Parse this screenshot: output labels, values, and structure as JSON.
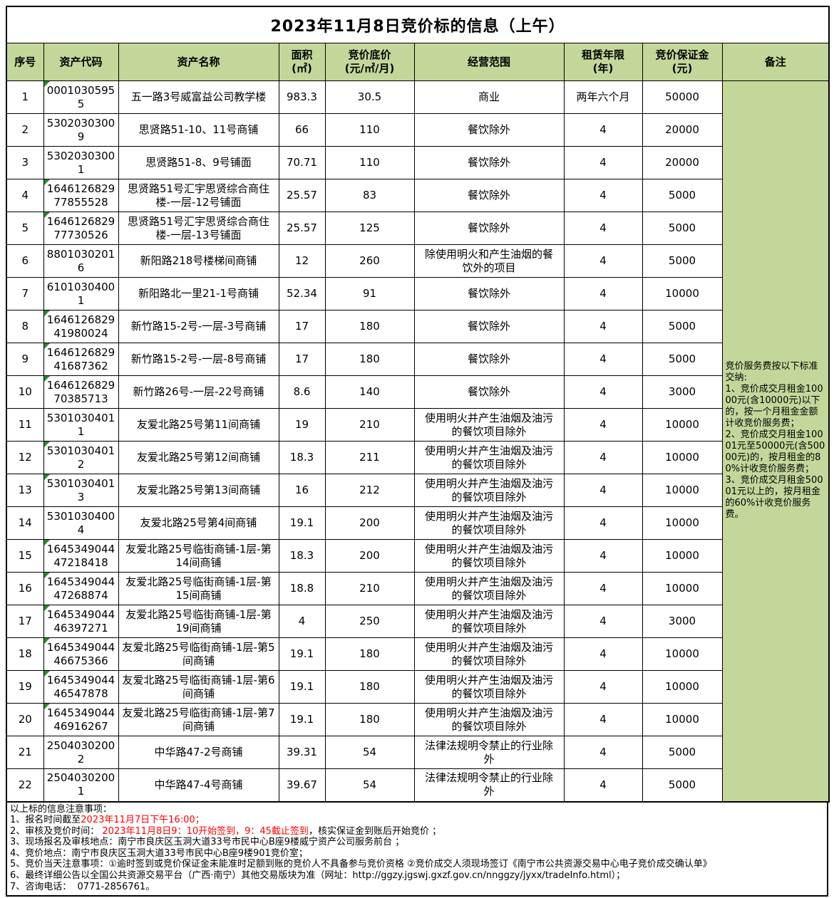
{
  "title": "2023年11月8日竞价标的信息（上午）",
  "colors": {
    "header_bg": "#c4d79b",
    "remark_bg": "#c4d79b",
    "note_highlight_red": "#ff0000",
    "border": "#000000",
    "marker_green": "#2e8b2e"
  },
  "table": {
    "columns": [
      "序号",
      "资产代码",
      "资产名称",
      "面积\n(㎡)",
      "竞价底价\n(元/㎡/月)",
      "经营范围",
      "租赁年限\n(年)",
      "竞价保证金\n(元)",
      "备注"
    ],
    "rows": [
      {
        "no": "1",
        "code": "00010305955",
        "name": "五一路3号威富益公司教学楼",
        "area": "983.3",
        "price": "30.5",
        "scope": "商业",
        "term": "两年六个月",
        "deposit": "50000",
        "marker": true
      },
      {
        "no": "2",
        "code": "53020303009",
        "name": "思贤路51-10、11号商铺",
        "area": "66",
        "price": "110",
        "scope": "餐饮除外",
        "term": "4",
        "deposit": "20000",
        "marker": false
      },
      {
        "no": "3",
        "code": "53020303001",
        "name": "思贤路51-8、9号铺面",
        "area": "70.71",
        "price": "110",
        "scope": "餐饮除外",
        "term": "4",
        "deposit": "20000",
        "marker": false
      },
      {
        "no": "4",
        "code": "164612682977855528",
        "name": "思贤路51号汇宇思贤综合商住楼-一层-12号铺面",
        "area": "25.57",
        "price": "83",
        "scope": "餐饮除外",
        "term": "4",
        "deposit": "5000",
        "marker": true
      },
      {
        "no": "5",
        "code": "164612682977730526",
        "name": "思贤路51号汇宇思贤综合商住楼-一层-13号铺面",
        "area": "25.57",
        "price": "125",
        "scope": "餐饮除外",
        "term": "4",
        "deposit": "5000",
        "marker": true
      },
      {
        "no": "6",
        "code": "88010302016",
        "name": "新阳路218号楼梯间商铺",
        "area": "12",
        "price": "260",
        "scope": "除使用明火和产生油烟的餐饮外的项目",
        "term": "4",
        "deposit": "5000",
        "marker": false
      },
      {
        "no": "7",
        "code": "61010304001",
        "name": "新阳路北一里21-1号商铺",
        "area": "52.34",
        "price": "91",
        "scope": "餐饮除外",
        "term": "4",
        "deposit": "10000",
        "marker": false
      },
      {
        "no": "8",
        "code": "164612682941980024",
        "name": "新竹路15-2号-一层-3号商铺",
        "area": "17",
        "price": "180",
        "scope": "餐饮除外",
        "term": "4",
        "deposit": "5000",
        "marker": true
      },
      {
        "no": "9",
        "code": "164612682941687362",
        "name": "新竹路15-2号-一层-8号商铺",
        "area": "17",
        "price": "180",
        "scope": "餐饮除外",
        "term": "4",
        "deposit": "5000",
        "marker": true
      },
      {
        "no": "10",
        "code": "164612682970385713",
        "name": "新竹路26号-一层-22号商铺",
        "area": "8.6",
        "price": "140",
        "scope": "餐饮除外",
        "term": "4",
        "deposit": "3000",
        "marker": true
      },
      {
        "no": "11",
        "code": "53010304011",
        "name": "友爱北路25号第11间商铺",
        "area": "19",
        "price": "210",
        "scope": "使用明火并产生油烟及油污的餐饮项目除外",
        "term": "4",
        "deposit": "10000",
        "marker": false
      },
      {
        "no": "12",
        "code": "53010304012",
        "name": "友爱北路25号第12间商铺",
        "area": "18.3",
        "price": "211",
        "scope": "使用明火并产生油烟及油污的餐饮项目除外",
        "term": "4",
        "deposit": "10000",
        "marker": true
      },
      {
        "no": "13",
        "code": "53010304013",
        "name": "友爱北路25号第13间商铺",
        "area": "16",
        "price": "212",
        "scope": "使用明火并产生油烟及油污的餐饮项目除外",
        "term": "4",
        "deposit": "10000",
        "marker": true
      },
      {
        "no": "14",
        "code": "53010304004",
        "name": "友爱北路25号第4间商铺",
        "area": "19.1",
        "price": "200",
        "scope": "使用明火并产生油烟及油污的餐饮项目除外",
        "term": "4",
        "deposit": "10000",
        "marker": false
      },
      {
        "no": "15",
        "code": "164534904447218418",
        "name": "友爱北路25号临街商铺-1层-第14间商铺",
        "area": "18.3",
        "price": "200",
        "scope": "使用明火并产生油烟及油污的餐饮项目除外",
        "term": "4",
        "deposit": "10000",
        "marker": true
      },
      {
        "no": "16",
        "code": "164534904447268874",
        "name": "友爱北路25号临街商铺-1层-第15间商铺",
        "area": "18.8",
        "price": "210",
        "scope": "使用明火并产生油烟及油污的餐饮项目除外",
        "term": "4",
        "deposit": "10000",
        "marker": true
      },
      {
        "no": "17",
        "code": "164534904446397271",
        "name": "友爱北路25号临街商铺-1层-第19间商铺",
        "area": "4",
        "price": "250",
        "scope": "使用明火并产生油烟及油污的餐饮项目除外",
        "term": "4",
        "deposit": "3000",
        "marker": true
      },
      {
        "no": "18",
        "code": "164534904446675366",
        "name": "友爱北路25号临街商铺-1层-第5间商铺",
        "area": "19.1",
        "price": "180",
        "scope": "使用明火并产生油烟及油污的餐饮项目除外",
        "term": "4",
        "deposit": "10000",
        "marker": true
      },
      {
        "no": "19",
        "code": "164534904446547878",
        "name": "友爱北路25号临街商铺-1层-第6间商铺",
        "area": "19.1",
        "price": "180",
        "scope": "使用明火并产生油烟及油污的餐饮项目除外",
        "term": "4",
        "deposit": "10000",
        "marker": true
      },
      {
        "no": "20",
        "code": "164534904446916267",
        "name": "友爱北路25号临街商铺-1层-第7间商铺",
        "area": "19.1",
        "price": "180",
        "scope": "使用明火并产生油烟及油污的餐饮项目除外",
        "term": "4",
        "deposit": "10000",
        "marker": true
      },
      {
        "no": "21",
        "code": "25040302002",
        "name": "中华路47-2号商铺",
        "area": "39.31",
        "price": "54",
        "scope": "法律法规明令禁止的行业除外",
        "term": "4",
        "deposit": "5000",
        "marker": false
      },
      {
        "no": "22",
        "code": "25040302001",
        "name": "中华路47-4号商铺",
        "area": "39.67",
        "price": "54",
        "scope": "法律法规明令禁止的行业除外",
        "term": "4",
        "deposit": "5000",
        "marker": false
      }
    ],
    "remark": "竞价服务费按以下标准交纳:\n1、竞价成交月租金10000元(含10000元)以下的，按一个月租金金额计收竞价服务费；\n2、竞价成交月租金10001元至50000元(含50000元)的，按月租金的80%计收竞价服务费；\n3、竞价成交月租金50001元以上的，按月租金的60%计收竞价服务费。"
  },
  "notes": [
    [
      {
        "t": "以上标的信息注意事项：",
        "red": false
      }
    ],
    [
      {
        "t": "1、报名时间截至",
        "red": false
      },
      {
        "t": "2023年11月7日下午16:00；",
        "red": true
      }
    ],
    [
      {
        "t": "2、审核及竞价时间： ",
        "red": false
      },
      {
        "t": "2023年11月8日9：10开始签到，9：45截止签到",
        "red": true
      },
      {
        "t": "，核实保证金到账后开始竞价 ；",
        "red": false
      }
    ],
    [
      {
        "t": "3、现场报名及审核地点：南宁市良庆区玉洞大道33号市民中心B座9楼威宁资产公司服务前台 ；",
        "red": false
      }
    ],
    [
      {
        "t": "4、竞价地点：南宁市良庆区玉洞大道33号市民中心B座9楼901竞价室；",
        "red": false
      }
    ],
    [
      {
        "t": "5、竞价当天注意事项：①逾时签到或竞价保证金未能准时足额到账的竞价人不具备参与竞价资格 ②竞价成交人须现场签订《南宁市公共资源交易中心电子竞价成交确认单》",
        "red": false
      }
    ],
    [
      {
        "t": "6、最终详细公告以全国公共资源交易平台（广西·南宁）其他交易版块为准（网址：http://ggzy.jgswj.gxzf.gov.cn/nnggzy/jyxx/tradeInfo.html）；",
        "red": false
      }
    ],
    [
      {
        "t": "7、咨询电话：  0771-2856761。",
        "red": false
      }
    ]
  ]
}
